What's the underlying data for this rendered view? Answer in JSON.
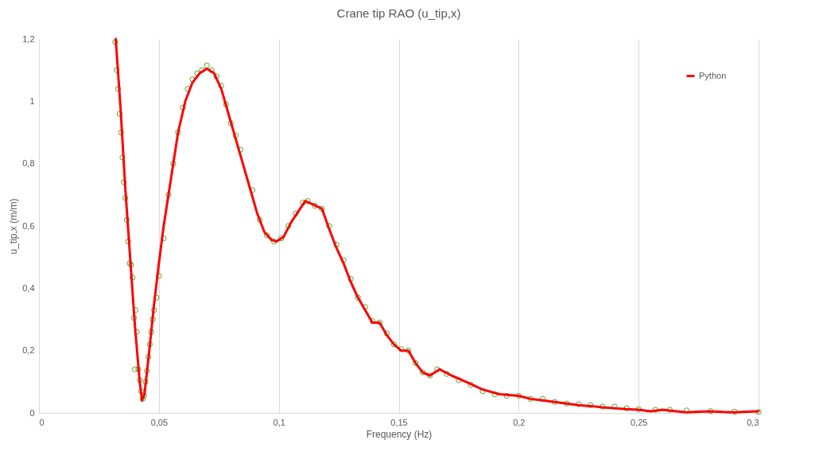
{
  "chart_data": {
    "type": "line",
    "title": "Crane tip RAO (u_tip,x)",
    "xlabel": "Frequency (Hz)",
    "ylabel": "u_tip,x (m/m)",
    "xlim": [
      0,
      0.3
    ],
    "xticks": [
      0,
      {
        "value": 0.05,
        "label": "0,05"
      },
      {
        "value": 0.1,
        "label": "0,1"
      },
      {
        "value": 0.15,
        "label": "0,15"
      },
      {
        "value": 0.2,
        "label": "0,2"
      },
      {
        "value": 0.25,
        "label": "0,25"
      },
      {
        "value": 0.3,
        "label": "0,3"
      }
    ],
    "ylim": [
      0,
      1.2
    ],
    "yticks": [
      0,
      {
        "value": 0.2,
        "label": "0,2"
      },
      {
        "value": 0.4,
        "label": "0,4"
      },
      {
        "value": 0.6,
        "label": "0,6"
      },
      {
        "value": 0.8,
        "label": "0,8"
      },
      1,
      {
        "value": 1.2,
        "label": "1,2"
      }
    ],
    "grid": "x",
    "legend": "right",
    "series": [
      {
        "name": "Python",
        "type": "line",
        "color": "#ff0000",
        "line_style": "solid",
        "x": [
          0.032,
          0.034,
          0.036,
          0.038,
          0.04,
          0.042,
          0.043,
          0.044,
          0.046,
          0.048,
          0.05,
          0.052,
          0.055,
          0.058,
          0.061,
          0.064,
          0.067,
          0.07,
          0.073,
          0.076,
          0.079,
          0.082,
          0.085,
          0.088,
          0.091,
          0.094,
          0.097,
          0.099,
          0.102,
          0.105,
          0.108,
          0.111,
          0.114,
          0.118,
          0.121,
          0.124,
          0.127,
          0.13,
          0.133,
          0.136,
          0.139,
          0.142,
          0.145,
          0.148,
          0.151,
          0.154,
          0.157,
          0.16,
          0.163,
          0.167,
          0.172,
          0.178,
          0.185,
          0.192,
          0.2,
          0.205,
          0.21,
          0.215,
          0.22,
          0.225,
          0.23,
          0.235,
          0.24,
          0.245,
          0.25,
          0.255,
          0.26,
          0.265,
          0.27,
          0.275,
          0.28,
          0.285,
          0.29,
          0.295,
          0.3
        ],
        "values": [
          1.2,
          0.98,
          0.72,
          0.5,
          0.28,
          0.1,
          0.04,
          0.06,
          0.2,
          0.35,
          0.48,
          0.6,
          0.75,
          0.9,
          1.0,
          1.06,
          1.09,
          1.105,
          1.09,
          1.04,
          0.96,
          0.88,
          0.8,
          0.72,
          0.64,
          0.58,
          0.555,
          0.55,
          0.565,
          0.61,
          0.645,
          0.68,
          0.67,
          0.655,
          0.59,
          0.53,
          0.48,
          0.42,
          0.37,
          0.33,
          0.29,
          0.29,
          0.25,
          0.22,
          0.2,
          0.2,
          0.16,
          0.13,
          0.12,
          0.14,
          0.12,
          0.1,
          0.075,
          0.06,
          0.055,
          0.045,
          0.04,
          0.035,
          0.03,
          0.025,
          0.022,
          0.018,
          0.015,
          0.012,
          0.01,
          0.005,
          0.01,
          0.006,
          0.002,
          0.004,
          0.005,
          0.003,
          0.002,
          0.004,
          0.005
        ]
      },
      {
        "type": "scatter",
        "marker": "circle",
        "color": "#4ea72e",
        "x": [
          0.0318,
          0.0324,
          0.033,
          0.0336,
          0.0342,
          0.0348,
          0.0354,
          0.036,
          0.0366,
          0.0372,
          0.0378,
          0.0384,
          0.039,
          0.0396,
          0.0402,
          0.0408,
          0.04,
          0.0414,
          0.042,
          0.0426,
          0.0432,
          0.0438,
          0.0444,
          0.045,
          0.0456,
          0.0462,
          0.0468,
          0.0474,
          0.048,
          0.049,
          0.05,
          0.052,
          0.054,
          0.056,
          0.058,
          0.06,
          0.062,
          0.064,
          0.066,
          0.068,
          0.07,
          0.072,
          0.074,
          0.076,
          0.078,
          0.08,
          0.082,
          0.084,
          0.089,
          0.092,
          0.095,
          0.098,
          0.101,
          0.104,
          0.107,
          0.11,
          0.112,
          0.115,
          0.118,
          0.121,
          0.124,
          0.127,
          0.13,
          0.133,
          0.136,
          0.139,
          0.142,
          0.145,
          0.148,
          0.151,
          0.154,
          0.157,
          0.16,
          0.163,
          0.166,
          0.17,
          0.175,
          0.18,
          0.185,
          0.19,
          0.195,
          0.2,
          0.205,
          0.21,
          0.215,
          0.22,
          0.225,
          0.23,
          0.235,
          0.24,
          0.245,
          0.25,
          0.257,
          0.263,
          0.27,
          0.28,
          0.29,
          0.3
        ],
        "values": [
          1.19,
          1.1,
          1.04,
          0.96,
          0.9,
          0.82,
          0.74,
          0.69,
          0.62,
          0.55,
          0.48,
          0.475,
          0.435,
          0.305,
          0.33,
          0.26,
          0.14,
          0.14,
          0.105,
          0.07,
          0.045,
          0.055,
          0.1,
          0.135,
          0.18,
          0.22,
          0.26,
          0.3,
          0.33,
          0.37,
          0.44,
          0.56,
          0.7,
          0.8,
          0.9,
          0.98,
          1.04,
          1.07,
          1.09,
          1.1,
          1.115,
          1.1,
          1.08,
          1.05,
          0.99,
          0.93,
          0.89,
          0.845,
          0.715,
          0.62,
          0.57,
          0.55,
          0.56,
          0.6,
          0.64,
          0.675,
          0.68,
          0.665,
          0.655,
          0.6,
          0.54,
          0.49,
          0.43,
          0.37,
          0.34,
          0.295,
          0.29,
          0.255,
          0.22,
          0.205,
          0.2,
          0.16,
          0.13,
          0.12,
          0.14,
          0.125,
          0.105,
          0.09,
          0.07,
          0.06,
          0.055,
          0.055,
          0.045,
          0.045,
          0.035,
          0.03,
          0.028,
          0.025,
          0.02,
          0.02,
          0.015,
          0.012,
          0.01,
          0.01,
          0.008,
          0.006,
          0.004,
          0.003
        ]
      }
    ]
  }
}
